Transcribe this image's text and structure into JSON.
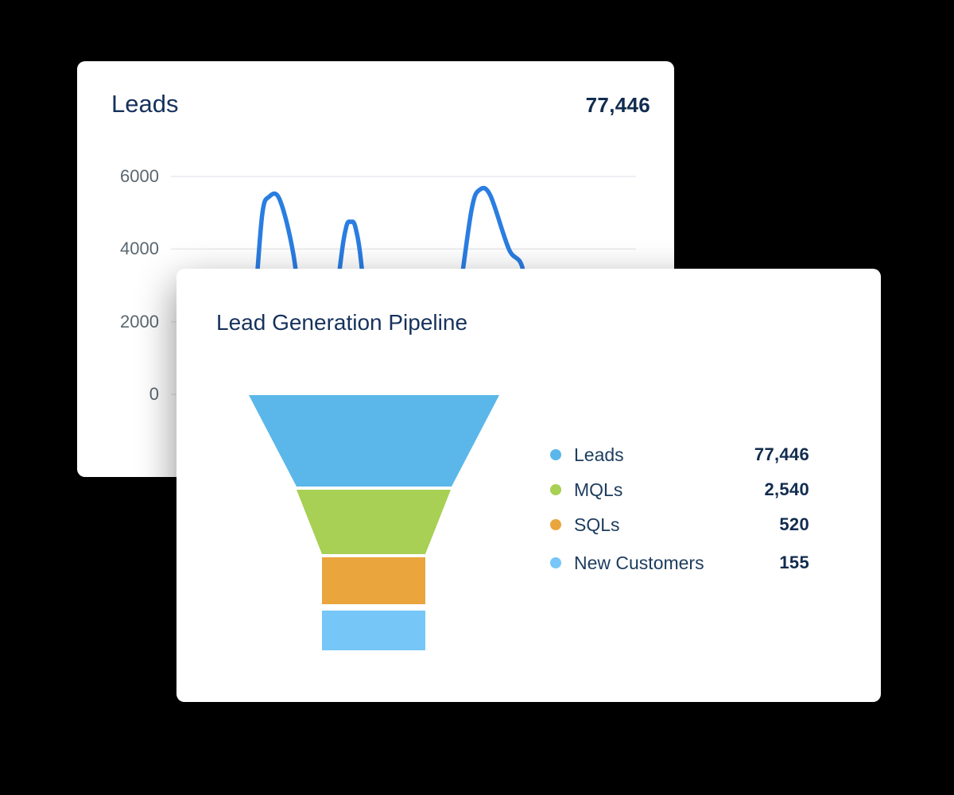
{
  "page": {
    "background": "#000000"
  },
  "leads_card": {
    "title": "Leads",
    "total": "77,446",
    "y_ticks": [
      "6000",
      "4000",
      "2000",
      "0"
    ],
    "line_color": "#2a7de1",
    "grid_color": "#e8eaed"
  },
  "pipeline_card": {
    "title": "Lead Generation Pipeline",
    "legend": [
      {
        "label": "Leads",
        "value": "77,446",
        "color": "#5bb7e9"
      },
      {
        "label": "MQLs",
        "value": "2,540",
        "color": "#a7d054"
      },
      {
        "label": "SQLs",
        "value": "520",
        "color": "#eaa53d"
      },
      {
        "label": "New Customers",
        "value": "155",
        "color": "#76c7f7"
      }
    ],
    "funnel": {
      "segments": [
        {
          "name": "Leads",
          "color": "#5bb7e9"
        },
        {
          "name": "MQLs",
          "color": "#a7d054"
        },
        {
          "name": "SQLs",
          "color": "#eaa53d"
        },
        {
          "name": "New Customers",
          "color": "#76c7f7"
        }
      ]
    }
  },
  "chart_data": [
    {
      "type": "line",
      "title": "Leads",
      "total": 77446,
      "xlim": [
        0,
        30
      ],
      "ylim": [
        0,
        6000
      ],
      "y_ticks": [
        0,
        2000,
        4000,
        6000
      ],
      "grid": true,
      "legend_position": "none",
      "line_color": "#2a7de1",
      "x": [
        4.9,
        5.5,
        5.9,
        6.3,
        7.0,
        7.9,
        8.6,
        9.2,
        10.1,
        10.9,
        11.3,
        11.6,
        11.9,
        12.3,
        12.9,
        14.5,
        16.5,
        17.8,
        18.7,
        19.4,
        19.9,
        20.6,
        21.8,
        22.7,
        23.3,
        23.8,
        24.5,
        28.0
      ],
      "y": [
        300,
        3000,
        5000,
        5430,
        5380,
        3850,
        1450,
        300,
        300,
        3500,
        4600,
        4750,
        4600,
        3500,
        300,
        250,
        250,
        300,
        3000,
        5100,
        5630,
        5480,
        4000,
        3450,
        1500,
        300,
        250,
        250
      ]
    },
    {
      "type": "funnel",
      "title": "Lead Generation Pipeline",
      "stages": [
        "Leads",
        "MQLs",
        "SQLs",
        "New Customers"
      ],
      "values": [
        77446,
        2540,
        520,
        155
      ],
      "colors": [
        "#5bb7e9",
        "#a7d054",
        "#eaa53d",
        "#76c7f7"
      ],
      "legend_position": "right"
    }
  ]
}
